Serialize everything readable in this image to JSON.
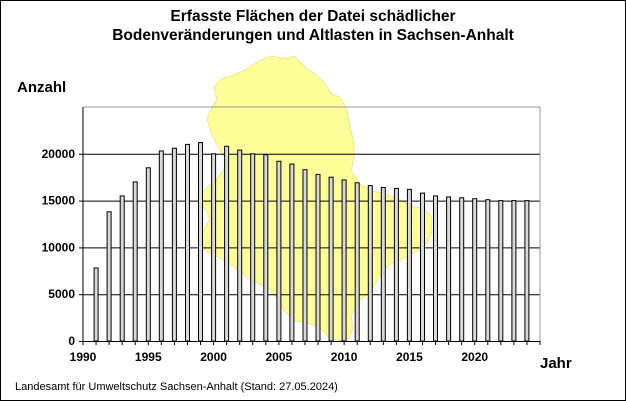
{
  "chart_data": {
    "type": "bar",
    "title_line1": "Erfasste Flächen der Datei schädlicher",
    "title_line2": "Bodenveränderungen und Altlasten  in  Sachsen-Anhalt",
    "ylabel": "Anzahl",
    "xlabel": "Jahr",
    "footer": "Landesamt für Umweltschutz Sachsen-Anhalt (Stand: 27.05.2024)",
    "categories": [
      1991,
      1992,
      1993,
      1994,
      1995,
      1996,
      1997,
      1998,
      1999,
      2000,
      2001,
      2002,
      2003,
      2004,
      2005,
      2006,
      2007,
      2008,
      2009,
      2010,
      2011,
      2012,
      2013,
      2014,
      2015,
      2016,
      2017,
      2018,
      2019,
      2020,
      2021,
      2022,
      2023,
      2024
    ],
    "values": [
      7800,
      13800,
      15500,
      17000,
      18500,
      20300,
      20600,
      21000,
      21200,
      20000,
      20800,
      20400,
      20000,
      19900,
      19200,
      18900,
      18300,
      17800,
      17500,
      17200,
      16900,
      16600,
      16400,
      16300,
      16200,
      15800,
      15500,
      15400,
      15300,
      15200,
      15100,
      15000,
      15000,
      15000
    ],
    "xlim": [
      1990,
      2025
    ],
    "ylim": [
      0,
      25000
    ],
    "yticks": [
      0,
      5000,
      10000,
      15000,
      20000
    ],
    "xticks": [
      1990,
      1995,
      2000,
      2005,
      2010,
      2015,
      2020
    ],
    "grid": true,
    "background_map": "Sachsen-Anhalt state outline",
    "colors": {
      "bar_fill": "#d9d9d9",
      "bar_stroke": "#000000",
      "map_fill": "#ffff99",
      "gridline": "#000000"
    }
  }
}
